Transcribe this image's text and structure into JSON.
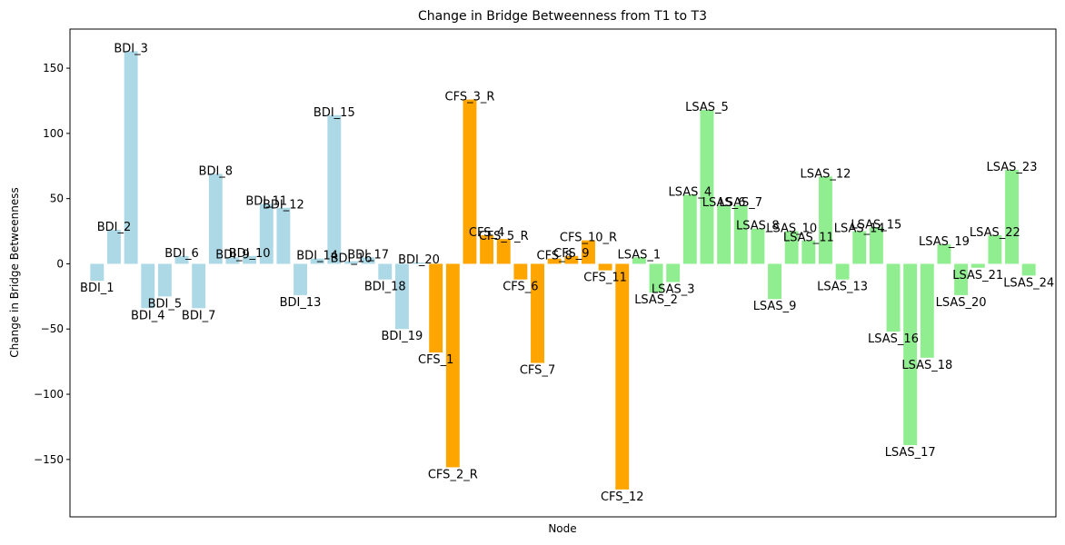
{
  "chart_data": {
    "type": "bar",
    "title": "Change in Bridge Betweenness from T1 to T3",
    "xlabel": "Node",
    "ylabel": "Change in Bridge Betweenness",
    "ylim": [
      -194,
      180
    ],
    "yticks": [
      -150,
      -100,
      -50,
      0,
      50,
      100,
      150
    ],
    "ytick_labels": [
      "−150",
      "−100",
      "−50",
      "0",
      "50",
      "100",
      "150"
    ],
    "grid": false,
    "x_ticks_visible": false,
    "groups": [
      {
        "name": "BDI",
        "color": "#add8e6"
      },
      {
        "name": "CFS",
        "color": "#ffa500"
      },
      {
        "name": "LSAS",
        "color": "#90ee90"
      }
    ],
    "categories": [
      "BDI_1",
      "BDI_2",
      "BDI_3",
      "BDI_4",
      "BDI_5",
      "BDI_6",
      "BDI_7",
      "BDI_8",
      "BDI_9",
      "BDI_10",
      "BDI_11",
      "BDI_12",
      "BDI_13",
      "BDI_14",
      "BDI_15",
      "BDI_16",
      "BDI_17",
      "BDI_18",
      "BDI_19",
      "BDI_20",
      "CFS_1",
      "CFS_2_R",
      "CFS_3_R",
      "CFS_4",
      "CFS_5_R",
      "CFS_6",
      "CFS_7",
      "CFS_8",
      "CFS_9",
      "CFS_10_R",
      "CFS_11",
      "CFS_12",
      "LSAS_1",
      "LSAS_2",
      "LSAS_3",
      "LSAS_4",
      "LSAS_5",
      "LSAS_6",
      "LSAS_7",
      "LSAS_8",
      "LSAS_9",
      "LSAS_10",
      "LSAS_11",
      "LSAS_12",
      "LSAS_13",
      "LSAS_14",
      "LSAS_15",
      "LSAS_16",
      "LSAS_17",
      "LSAS_18",
      "LSAS_19",
      "LSAS_20",
      "LSAS_21",
      "LSAS_22",
      "LSAS_23",
      "LSAS_24"
    ],
    "values": [
      -13,
      26,
      163,
      -34,
      -25,
      6,
      -34,
      69,
      5,
      6,
      46,
      43,
      -24,
      4,
      114,
      2,
      5,
      -12,
      -50,
      1,
      -68,
      -156,
      126,
      22,
      19,
      -12,
      -76,
      4,
      6,
      18,
      -5,
      -173,
      5,
      -22,
      -14,
      53,
      118,
      45,
      45,
      27,
      -27,
      25,
      18,
      67,
      -12,
      25,
      28,
      -52,
      -139,
      -72,
      15,
      -24,
      -3,
      22,
      72,
      -9
    ],
    "series_group": [
      "BDI",
      "BDI",
      "BDI",
      "BDI",
      "BDI",
      "BDI",
      "BDI",
      "BDI",
      "BDI",
      "BDI",
      "BDI",
      "BDI",
      "BDI",
      "BDI",
      "BDI",
      "BDI",
      "BDI",
      "BDI",
      "BDI",
      "BDI",
      "CFS",
      "CFS",
      "CFS",
      "CFS",
      "CFS",
      "CFS",
      "CFS",
      "CFS",
      "CFS",
      "CFS",
      "CFS",
      "CFS",
      "LSAS",
      "LSAS",
      "LSAS",
      "LSAS",
      "LSAS",
      "LSAS",
      "LSAS",
      "LSAS",
      "LSAS",
      "LSAS",
      "LSAS",
      "LSAS",
      "LSAS",
      "LSAS",
      "LSAS",
      "LSAS",
      "LSAS",
      "LSAS",
      "LSAS",
      "LSAS",
      "LSAS",
      "LSAS",
      "LSAS",
      "LSAS"
    ]
  }
}
